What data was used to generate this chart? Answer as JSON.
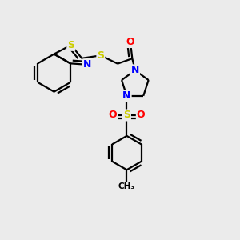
{
  "bg_color": "#ebebeb",
  "atom_colors": {
    "S": "#cccc00",
    "N": "#0000ff",
    "O": "#ff0000",
    "C": "#000000"
  },
  "bond_color": "#000000",
  "bond_width": 1.6,
  "font_size_atom": 9,
  "figsize": [
    3.0,
    3.0
  ],
  "dpi": 100,
  "xlim": [
    0,
    10
  ],
  "ylim": [
    0,
    10
  ]
}
